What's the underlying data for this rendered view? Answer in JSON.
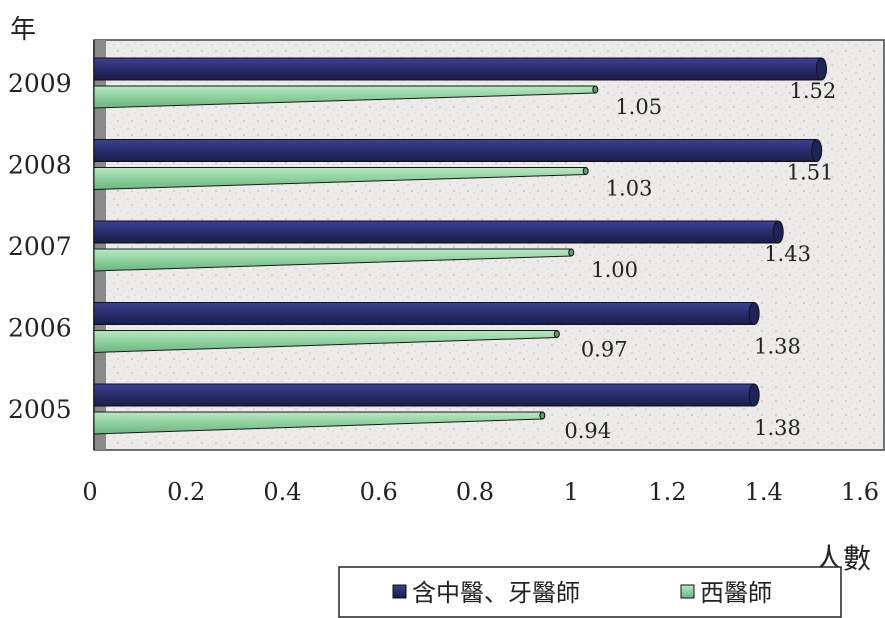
{
  "chart_data": {
    "type": "bar",
    "orientation": "horizontal",
    "ylabel": "年",
    "xlabel": "人數",
    "categories": [
      "2009",
      "2008",
      "2007",
      "2006",
      "2005"
    ],
    "series": [
      {
        "name": "含中醫、牙醫師",
        "values": [
          1.52,
          1.51,
          1.43,
          1.38,
          1.38
        ],
        "labels": [
          "1.52",
          "1.51",
          "1.43",
          "1.38",
          "1.38"
        ],
        "color": "#2b2f6e"
      },
      {
        "name": "西醫師",
        "values": [
          1.05,
          1.03,
          1.0,
          0.97,
          0.94
        ],
        "labels": [
          "1.05",
          "1.03",
          "1.00",
          "0.97",
          "0.94"
        ],
        "color": "#8fd19e"
      }
    ],
    "xlim": [
      0,
      1.6
    ],
    "xticks": [
      "0",
      "0.2",
      "0.4",
      "0.6",
      "0.8",
      "1",
      "1.2",
      "1.4",
      "1.6"
    ],
    "legend": "bottom",
    "grid": false,
    "background": "textured-gray"
  }
}
